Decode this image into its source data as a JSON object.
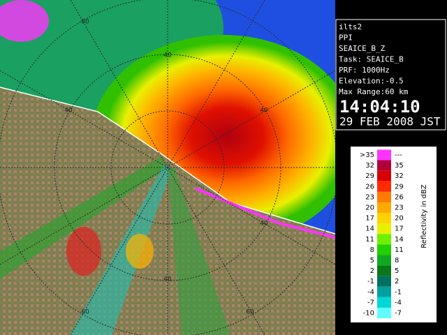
{
  "info_lines": [
    "ilts2",
    "PPI",
    "SEAICE_B_Z",
    "Task: SEAICE_B",
    "PRF: 1000Hz",
    "Elevation:-0.5",
    "Max Range:60 km"
  ],
  "time": "14:04:10",
  "date": "29 FEB 2008 JST",
  "range_labels": [
    "60",
    "40",
    "40",
    "40",
    "40",
    "40",
    "60",
    "60"
  ],
  "legend": {
    "title": "Reflectivity in dBZ",
    "rows": [
      {
        "low": ">35",
        "high": "---",
        "color": "#ff33ff"
      },
      {
        "low": "32",
        "high": "35",
        "color": "#b0003a"
      },
      {
        "low": "29",
        "high": "32",
        "color": "#d80000"
      },
      {
        "low": "26",
        "high": "29",
        "color": "#ff2a00"
      },
      {
        "low": "23",
        "high": "26",
        "color": "#ff7a00"
      },
      {
        "low": "20",
        "high": "23",
        "color": "#ffaa00"
      },
      {
        "low": "17",
        "high": "20",
        "color": "#ffd200"
      },
      {
        "low": "14",
        "high": "17",
        "color": "#e8f000"
      },
      {
        "low": "11",
        "high": "14",
        "color": "#70f000"
      },
      {
        "low": "8",
        "high": "11",
        "color": "#20d000"
      },
      {
        "low": "5",
        "high": "8",
        "color": "#10a820"
      },
      {
        "low": "2",
        "high": "5",
        "color": "#087818"
      },
      {
        "low": "-1",
        "high": "2",
        "color": "#007060"
      },
      {
        "low": "-4",
        "high": "-1",
        "color": "#00a0a0"
      },
      {
        "low": "-7",
        "high": "-4",
        "color": "#00d8d8"
      },
      {
        "low": "-10",
        "high": "-7",
        "color": "#60ffff"
      }
    ]
  }
}
